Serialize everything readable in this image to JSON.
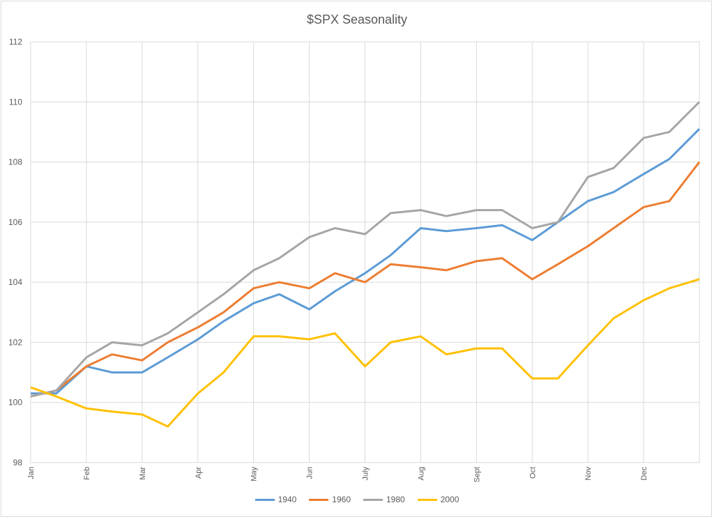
{
  "chart_data": {
    "type": "line",
    "title": "$SPX Seasonality",
    "xlabel": "",
    "ylabel": "",
    "ylim": [
      98,
      112
    ],
    "yticks": [
      98,
      100,
      102,
      104,
      106,
      108,
      110,
      112
    ],
    "xtick_labels": [
      "Jan",
      "Feb",
      "Mar",
      "Apr",
      "May",
      "Jun",
      "July",
      "Aug",
      "Sept",
      "Oct",
      "Nov",
      "Dec"
    ],
    "grid": true,
    "legend_position": "bottom",
    "x": [
      "Jan 1",
      "Jan 15",
      "Feb 1",
      "Feb 15",
      "Mar 1",
      "Mar 15",
      "Apr 1",
      "Apr 15",
      "May 1",
      "May 15",
      "Jun 1",
      "Jun 15",
      "Jul 1",
      "Jul 15",
      "Aug 1",
      "Aug 15",
      "Sep 1",
      "Sep 15",
      "Oct 1",
      "Oct 15",
      "Nov 1",
      "Nov 15",
      "Dec 1",
      "Dec 15",
      "Dec 31"
    ],
    "series": [
      {
        "name": "1940",
        "color": "#5B9BD5",
        "values": [
          100.3,
          100.3,
          101.2,
          101.0,
          101.0,
          101.5,
          102.1,
          102.7,
          103.3,
          103.6,
          103.1,
          103.7,
          104.3,
          104.9,
          105.8,
          105.7,
          105.8,
          105.9,
          105.4,
          106.0,
          106.7,
          107.0,
          107.6,
          108.1,
          109.1
        ]
      },
      {
        "name": "1960",
        "color": "#ED7D31",
        "values": [
          100.2,
          100.4,
          101.2,
          101.6,
          101.4,
          102.0,
          102.5,
          103.0,
          103.8,
          104.0,
          103.8,
          104.3,
          104.0,
          104.6,
          104.5,
          104.4,
          104.7,
          104.8,
          104.1,
          104.6,
          105.2,
          105.8,
          106.5,
          106.7,
          108.0
        ]
      },
      {
        "name": "1980",
        "color": "#A5A5A5",
        "values": [
          100.2,
          100.4,
          101.5,
          102.0,
          101.9,
          102.3,
          103.0,
          103.6,
          104.4,
          104.8,
          105.5,
          105.8,
          105.6,
          106.3,
          106.4,
          106.2,
          106.4,
          106.4,
          105.8,
          106.0,
          107.5,
          107.8,
          108.8,
          109.0,
          110.0
        ]
      },
      {
        "name": "2000",
        "color": "#FFC000",
        "values": [
          100.5,
          100.2,
          99.8,
          99.7,
          99.6,
          99.2,
          100.3,
          101.0,
          102.2,
          102.2,
          102.1,
          102.3,
          101.2,
          102.0,
          102.2,
          101.6,
          101.8,
          101.8,
          100.8,
          100.8,
          101.9,
          102.8,
          103.4,
          103.8,
          104.1
        ]
      }
    ]
  }
}
